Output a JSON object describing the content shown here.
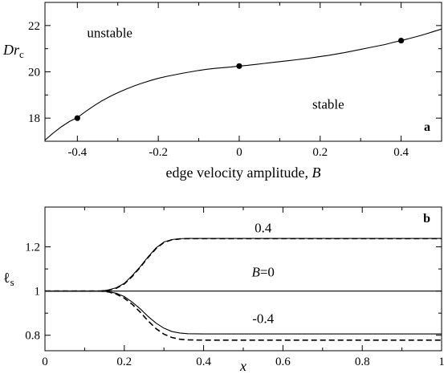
{
  "chart_data": [
    {
      "type": "line",
      "panel": "a",
      "xlabel": "edge velocity amplitude, B",
      "ylabel": "Dr",
      "ylabel_sub": "c",
      "xlim": [
        -0.48,
        0.5
      ],
      "ylim": [
        17.0,
        23.0
      ],
      "xticks": [
        -0.4,
        -0.2,
        0,
        0.2,
        0.4
      ],
      "xticklabels": [
        "-0.4",
        "-0.2",
        "0",
        "0.2",
        "0.4"
      ],
      "yticks": [
        18,
        20,
        22
      ],
      "yticklabels": [
        "18",
        "20",
        "22"
      ],
      "grid": false,
      "region_labels": [
        {
          "text": "unstable",
          "x": -0.32,
          "y": 21.5
        },
        {
          "text": "stable",
          "x": 0.22,
          "y": 18.4
        }
      ],
      "series": [
        {
          "style": "solid",
          "x": [
            -0.48,
            -0.46,
            -0.44,
            -0.42,
            -0.4,
            -0.38,
            -0.36,
            -0.34,
            -0.32,
            -0.3,
            -0.28,
            -0.26,
            -0.24,
            -0.22,
            -0.2,
            -0.18,
            -0.16,
            -0.14,
            -0.12,
            -0.1,
            -0.08,
            -0.06,
            -0.04,
            -0.02,
            0.0,
            0.02,
            0.04,
            0.06,
            0.08,
            0.1,
            0.12,
            0.14,
            0.16,
            0.18,
            0.2,
            0.22,
            0.24,
            0.26,
            0.28,
            0.3,
            0.32,
            0.34,
            0.36,
            0.38,
            0.4,
            0.42,
            0.44,
            0.46,
            0.48,
            0.5
          ],
          "y": [
            17.05,
            17.35,
            17.62,
            17.85,
            18.02,
            18.28,
            18.52,
            18.74,
            18.93,
            19.1,
            19.25,
            19.39,
            19.51,
            19.62,
            19.72,
            19.8,
            19.87,
            19.94,
            20.0,
            20.06,
            20.11,
            20.15,
            20.18,
            20.21,
            20.25,
            20.28,
            20.32,
            20.36,
            20.4,
            20.44,
            20.48,
            20.52,
            20.56,
            20.61,
            20.66,
            20.71,
            20.77,
            20.83,
            20.9,
            20.97,
            21.04,
            21.11,
            21.18,
            21.27,
            21.35,
            21.44,
            21.53,
            21.63,
            21.74,
            21.85
          ]
        }
      ],
      "markers": [
        {
          "x": -0.4,
          "y": 18.0
        },
        {
          "x": 0.0,
          "y": 20.25
        },
        {
          "x": 0.4,
          "y": 21.35
        }
      ]
    },
    {
      "type": "line",
      "panel": "b",
      "xlabel": "x",
      "ylabel": "ℓ",
      "ylabel_sub": "s",
      "xlim": [
        0,
        1
      ],
      "ylim": [
        0.73,
        1.38
      ],
      "xticks": [
        0,
        0.2,
        0.4,
        0.6,
        0.8,
        1
      ],
      "xticklabels": [
        "0",
        "0.2",
        "0.4",
        "0.6",
        "0.8",
        "1"
      ],
      "yticks": [
        0.8,
        1,
        1.2
      ],
      "yticklabels": [
        "0.8",
        "1",
        "1.2"
      ],
      "grid": false,
      "series": [
        {
          "name": "0.4",
          "style": "solid",
          "x": [
            0,
            0.14,
            0.16,
            0.18,
            0.2,
            0.22,
            0.24,
            0.26,
            0.28,
            0.3,
            0.32,
            0.34,
            0.36,
            0.38,
            1.0
          ],
          "y": [
            1.0,
            1.0,
            1.005,
            1.015,
            1.035,
            1.07,
            1.11,
            1.155,
            1.195,
            1.222,
            1.233,
            1.237,
            1.238,
            1.238,
            1.238
          ]
        },
        {
          "name": "0.4",
          "style": "dashed",
          "x": [
            0,
            0.14,
            0.16,
            0.18,
            0.2,
            0.22,
            0.24,
            0.26,
            0.28,
            0.3,
            0.32,
            0.34,
            0.36,
            0.38,
            1.0
          ],
          "y": [
            1.0,
            1.0,
            1.004,
            1.013,
            1.032,
            1.066,
            1.107,
            1.152,
            1.192,
            1.22,
            1.232,
            1.236,
            1.237,
            1.237,
            1.237
          ]
        },
        {
          "name": "B=0",
          "style": "solid",
          "x": [
            0,
            1
          ],
          "y": [
            1.0,
            1.0
          ]
        },
        {
          "name": "-0.4",
          "style": "solid",
          "x": [
            0,
            0.14,
            0.16,
            0.18,
            0.2,
            0.22,
            0.24,
            0.26,
            0.28,
            0.3,
            0.32,
            0.34,
            0.36,
            0.4,
            1.0
          ],
          "y": [
            1.0,
            1.0,
            0.997,
            0.99,
            0.975,
            0.95,
            0.92,
            0.885,
            0.855,
            0.832,
            0.817,
            0.81,
            0.807,
            0.806,
            0.806
          ]
        },
        {
          "name": "-0.4",
          "style": "dashed",
          "x": [
            0,
            0.14,
            0.16,
            0.18,
            0.2,
            0.22,
            0.24,
            0.26,
            0.28,
            0.3,
            0.32,
            0.34,
            0.36,
            0.4,
            1.0
          ],
          "y": [
            1.0,
            1.0,
            0.996,
            0.986,
            0.968,
            0.94,
            0.905,
            0.865,
            0.83,
            0.805,
            0.79,
            0.782,
            0.779,
            0.778,
            0.778
          ]
        }
      ],
      "curve_labels": [
        {
          "text": "0.4",
          "x": 0.55,
          "y": 1.265
        },
        {
          "text": "B=0",
          "x": 0.55,
          "y": 1.065
        },
        {
          "text": "-0.4",
          "x": 0.55,
          "y": 0.855
        }
      ]
    }
  ]
}
